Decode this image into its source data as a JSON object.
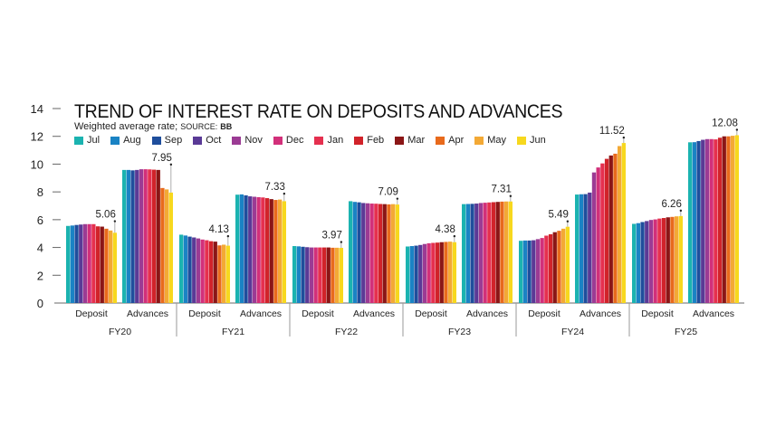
{
  "chart_data": {
    "type": "bar",
    "title": "TREND OF INTEREST RATE ON DEPOSITS AND ADVANCES",
    "subtitle": "Weighted average rate;",
    "source_label": "SOURCE:",
    "source": "BB",
    "ylim": [
      0,
      14
    ],
    "yticks": [
      "0",
      "2",
      "4",
      "6",
      "8",
      "10",
      "12",
      "14"
    ],
    "grid": false,
    "legend_position": "top-left",
    "series": [
      {
        "name": "Jul",
        "color": "#1bb3b0"
      },
      {
        "name": "Aug",
        "color": "#1a83c4"
      },
      {
        "name": "Sep",
        "color": "#1f4e9c"
      },
      {
        "name": "Oct",
        "color": "#5a3a96"
      },
      {
        "name": "Nov",
        "color": "#9b3b94"
      },
      {
        "name": "Dec",
        "color": "#d2307a"
      },
      {
        "name": "Jan",
        "color": "#e5304f"
      },
      {
        "name": "Feb",
        "color": "#d1232a"
      },
      {
        "name": "Mar",
        "color": "#8b1616"
      },
      {
        "name": "Apr",
        "color": "#e86a1c"
      },
      {
        "name": "May",
        "color": "#f3a935"
      },
      {
        "name": "Jun",
        "color": "#f7d81e"
      }
    ],
    "groups": [
      {
        "fy": "FY20",
        "categories": [
          {
            "label": "Deposit",
            "values": [
              5.55,
              5.58,
              5.62,
              5.65,
              5.68,
              5.68,
              5.68,
              5.52,
              5.5,
              5.35,
              5.22,
              5.06
            ],
            "annotation": "5.06"
          },
          {
            "label": "Advances",
            "values": [
              9.58,
              9.58,
              9.55,
              9.58,
              9.63,
              9.63,
              9.62,
              9.6,
              9.58,
              8.28,
              8.18,
              7.95
            ],
            "annotation": "7.95"
          }
        ]
      },
      {
        "fy": "FY21",
        "categories": [
          {
            "label": "Deposit",
            "values": [
              4.92,
              4.86,
              4.78,
              4.72,
              4.65,
              4.57,
              4.52,
              4.45,
              4.42,
              4.15,
              4.2,
              4.13
            ],
            "annotation": "4.13"
          },
          {
            "label": "Advances",
            "values": [
              7.8,
              7.82,
              7.75,
              7.68,
              7.65,
              7.62,
              7.6,
              7.55,
              7.48,
              7.42,
              7.45,
              7.33
            ],
            "annotation": "7.33"
          }
        ]
      },
      {
        "fy": "FY22",
        "categories": [
          {
            "label": "Deposit",
            "values": [
              4.1,
              4.08,
              4.05,
              4.02,
              4.0,
              4.0,
              4.0,
              4.0,
              4.0,
              3.98,
              3.98,
              3.97
            ],
            "annotation": "3.97"
          },
          {
            "label": "Advances",
            "values": [
              7.33,
              7.28,
              7.25,
              7.2,
              7.18,
              7.16,
              7.15,
              7.13,
              7.12,
              7.1,
              7.12,
              7.09
            ],
            "annotation": "7.09"
          }
        ]
      },
      {
        "fy": "FY23",
        "categories": [
          {
            "label": "Deposit",
            "values": [
              4.07,
              4.1,
              4.13,
              4.18,
              4.25,
              4.3,
              4.33,
              4.35,
              4.38,
              4.4,
              4.42,
              4.38
            ],
            "annotation": "4.38"
          },
          {
            "label": "Advances",
            "values": [
              7.12,
              7.13,
              7.14,
              7.16,
              7.2,
              7.22,
              7.24,
              7.26,
              7.28,
              7.3,
              7.31,
              7.31
            ],
            "annotation": "7.31"
          }
        ]
      },
      {
        "fy": "FY24",
        "categories": [
          {
            "label": "Deposit",
            "values": [
              4.48,
              4.5,
              4.5,
              4.52,
              4.6,
              4.68,
              4.85,
              4.95,
              5.1,
              5.2,
              5.35,
              5.49
            ],
            "annotation": "5.49"
          },
          {
            "label": "Advances",
            "values": [
              7.81,
              7.83,
              7.84,
              7.95,
              9.4,
              9.76,
              10.05,
              10.38,
              10.62,
              10.75,
              11.3,
              11.52
            ],
            "annotation": "11.52"
          }
        ]
      },
      {
        "fy": "FY25",
        "categories": [
          {
            "label": "Deposit",
            "values": [
              5.7,
              5.75,
              5.83,
              5.9,
              5.98,
              6.02,
              6.08,
              6.12,
              6.17,
              6.2,
              6.24,
              6.26
            ],
            "annotation": "6.26"
          },
          {
            "label": "Advances",
            "values": [
              11.57,
              11.58,
              11.66,
              11.75,
              11.8,
              11.8,
              11.78,
              11.9,
              12.0,
              12.0,
              12.04,
              12.08
            ],
            "annotation": "12.08"
          }
        ]
      }
    ]
  }
}
